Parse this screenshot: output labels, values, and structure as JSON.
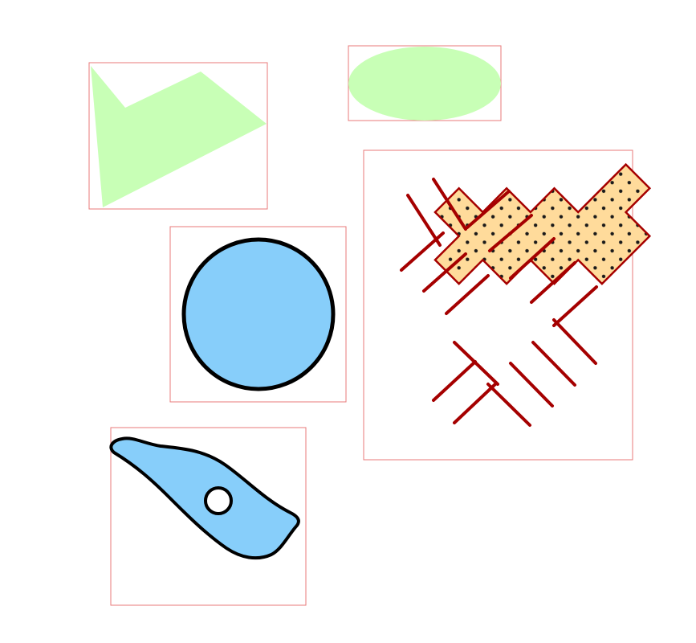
{
  "canvas": {
    "background": "#ffffff"
  },
  "colors": {
    "bounding_box": "#e87a7a",
    "light_green": "#c8ffb6",
    "light_blue": "#87cefa",
    "outline_black": "#000000",
    "peach": "#ffdb9b",
    "dark_red": "#a50000",
    "dot": "#1a1a1a",
    "white": "#ffffff"
  },
  "shapes": [
    {
      "id": "polygon-shape",
      "kind": "polygon",
      "fill": "light_green",
      "outline": "none"
    },
    {
      "id": "ellipse-shape",
      "kind": "ellipse",
      "fill": "light_green",
      "outline": "none"
    },
    {
      "id": "cross-shape",
      "kind": "cross-polygon",
      "fill": "peach",
      "pattern": "dots",
      "outline": "dark_red",
      "hatch": "dark_red"
    },
    {
      "id": "circle-shape",
      "kind": "circle",
      "fill": "light_blue",
      "outline": "outline_black"
    },
    {
      "id": "blob-shape",
      "kind": "blob-with-hole",
      "fill": "light_blue",
      "outline": "outline_black"
    }
  ]
}
